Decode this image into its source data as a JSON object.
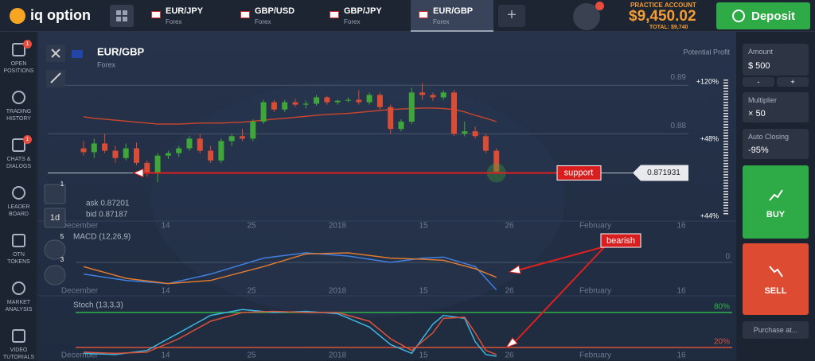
{
  "header": {
    "logo": "iq option",
    "tabs": [
      {
        "pair": "EUR/JPY",
        "type": "Forex"
      },
      {
        "pair": "GBP/USD",
        "type": "Forex"
      },
      {
        "pair": "GBP/JPY",
        "type": "Forex"
      },
      {
        "pair": "EUR/GBP",
        "type": "Forex"
      }
    ],
    "add": "+",
    "account_label": "PRACTICE ACCOUNT",
    "balance": "$9,450.02",
    "total": "TOTAL: $9,740",
    "deposit": "Deposit"
  },
  "sidebar": [
    {
      "lines": [
        "OPEN",
        "POSITIONS"
      ],
      "badge": "1"
    },
    {
      "lines": [
        "TRADING",
        "HISTORY"
      ]
    },
    {
      "lines": [
        "CHATS &",
        "DIALOGS"
      ],
      "badge": "1"
    },
    {
      "lines": [
        "LEADER",
        "BOARD"
      ]
    },
    {
      "lines": [
        "OTN",
        "TOKENS"
      ]
    },
    {
      "lines": [
        "MARKET",
        "ANALYSIS"
      ]
    },
    {
      "lines": [
        "VIDEO",
        "TUTORIALS"
      ]
    }
  ],
  "panel": {
    "amount_label": "Amount",
    "amount": "$ 500",
    "minus": "-",
    "plus": "+",
    "multiplier_label": "Multiplier",
    "multiplier": "× 50",
    "auto_label": "Auto Closing",
    "auto": "-95%",
    "buy": "BUY",
    "sell": "SELL",
    "purchase": "Purchase at..."
  },
  "chart_data": {
    "type": "candlestick",
    "title": "EUR/GBP",
    "subtitle": "Forex",
    "potential_profit": "Potential Profit",
    "profit_ticks": [
      "+120%",
      "+48%",
      "+44%"
    ],
    "ask": "ask 0.87201",
    "bid": "bid 0.87187",
    "period": "1d",
    "tool_badges": [
      "1",
      "5",
      "3"
    ],
    "xlabels": [
      "December",
      "14",
      "25",
      "2018",
      "15",
      "26",
      "February",
      "16"
    ],
    "ylim": [
      0.8625,
      0.892
    ],
    "yticks": [
      0.89,
      0.88
    ],
    "up_color": "#3fa73a",
    "down_color": "#d94c35",
    "open": [
      0.877,
      0.8762,
      0.878,
      0.8765,
      0.875,
      0.877,
      0.874,
      0.8718,
      0.8755,
      0.876,
      0.877,
      0.879,
      0.8765,
      0.8745,
      0.8785,
      0.8795,
      0.879,
      0.8825,
      0.8865,
      0.885,
      0.8865,
      0.886,
      0.8862,
      0.8875,
      0.8865,
      0.8868,
      0.887,
      0.8865,
      0.888,
      0.8855,
      0.881,
      0.8825,
      0.8885,
      0.888,
      0.8875,
      0.8885,
      0.88,
      0.8805,
      0.8795,
      0.8765
    ],
    "high": [
      0.8785,
      0.879,
      0.88,
      0.8775,
      0.878,
      0.8782,
      0.8745,
      0.876,
      0.8765,
      0.8775,
      0.8795,
      0.88,
      0.8775,
      0.879,
      0.88,
      0.881,
      0.883,
      0.887,
      0.887,
      0.887,
      0.8872,
      0.8868,
      0.888,
      0.8878,
      0.887,
      0.8875,
      0.889,
      0.8885,
      0.8885,
      0.886,
      0.883,
      0.8895,
      0.8905,
      0.8885,
      0.889,
      0.889,
      0.8825,
      0.8815,
      0.88,
      0.877
    ],
    "low": [
      0.8755,
      0.875,
      0.876,
      0.874,
      0.8745,
      0.8735,
      0.8712,
      0.87,
      0.8748,
      0.8752,
      0.8765,
      0.876,
      0.874,
      0.874,
      0.8775,
      0.8785,
      0.8785,
      0.882,
      0.8845,
      0.8845,
      0.8855,
      0.8852,
      0.8858,
      0.886,
      0.886,
      0.8865,
      0.886,
      0.886,
      0.885,
      0.88,
      0.8805,
      0.882,
      0.887,
      0.8868,
      0.887,
      0.8795,
      0.8795,
      0.879,
      0.876,
      0.872
    ],
    "close": [
      0.8762,
      0.878,
      0.8765,
      0.875,
      0.877,
      0.874,
      0.8718,
      0.8755,
      0.876,
      0.877,
      0.879,
      0.8765,
      0.8745,
      0.8785,
      0.8795,
      0.879,
      0.8825,
      0.8865,
      0.885,
      0.8865,
      0.886,
      0.8862,
      0.8875,
      0.8865,
      0.8868,
      0.887,
      0.8865,
      0.888,
      0.8855,
      0.881,
      0.8825,
      0.8885,
      0.888,
      0.8875,
      0.8885,
      0.88,
      0.8805,
      0.8795,
      0.8765,
      0.8722
    ],
    "ma": {
      "color": "#c0452e",
      "values": [
        0.8835,
        0.8832,
        0.883,
        0.8828,
        0.8826,
        0.8824,
        0.8822,
        0.882,
        0.882,
        0.882,
        0.8821,
        0.8822,
        0.8822,
        0.8822,
        0.8823,
        0.8824,
        0.8826,
        0.8828,
        0.883,
        0.8832,
        0.8834,
        0.8836,
        0.8838,
        0.884,
        0.8841,
        0.8842,
        0.8844,
        0.8846,
        0.8848,
        0.885,
        0.8851,
        0.8852,
        0.8853,
        0.8853,
        0.8852,
        0.885,
        0.8845,
        0.8838,
        0.8832,
        0.8825
      ]
    },
    "current": 0.871931,
    "annotations": [
      "support",
      "bearish"
    ],
    "macd": {
      "label": "MACD (12,26,9)",
      "ylim": [
        -0.003,
        0.003
      ],
      "yticks": [
        0
      ],
      "x": [
        0,
        4,
        8,
        12,
        17,
        21,
        25,
        29,
        32,
        34,
        37,
        39
      ],
      "series": [
        {
          "color": "#3f7fe0",
          "values": [
            -0.0011,
            -0.0017,
            -0.002,
            -0.0011,
            0.0004,
            0.0009,
            0.0006,
            0.0,
            0.0004,
            0.0005,
            -0.0004,
            -0.0026
          ]
        },
        {
          "color": "#e07a2e",
          "values": [
            -0.0004,
            -0.0015,
            -0.002,
            -0.0017,
            -0.0004,
            0.0008,
            0.0009,
            0.0004,
            0.0003,
            0.0002,
            -0.0006,
            -0.0014
          ]
        }
      ]
    },
    "stoch": {
      "label": "Stoch (13,3,3)",
      "ylim": [
        0,
        100
      ],
      "yticks": [
        {
          "value": 80,
          "label": "80%"
        },
        {
          "value": 20,
          "label": "20%"
        }
      ],
      "tick_colors": [
        "#2fb34a",
        "#d9533a"
      ],
      "x": [
        0,
        3,
        6,
        9,
        12,
        15,
        18,
        21,
        24,
        27,
        29,
        31,
        33,
        34,
        36,
        37,
        38,
        39
      ],
      "series": [
        {
          "color": "#3cb6e0",
          "values": [
            10,
            8,
            15,
            45,
            75,
            85,
            80,
            82,
            78,
            55,
            25,
            10,
            60,
            75,
            70,
            30,
            8,
            5
          ]
        },
        {
          "color": "#d9533a",
          "values": [
            12,
            10,
            12,
            35,
            65,
            80,
            82,
            80,
            80,
            65,
            35,
            15,
            45,
            70,
            72,
            45,
            15,
            8
          ]
        }
      ]
    }
  }
}
